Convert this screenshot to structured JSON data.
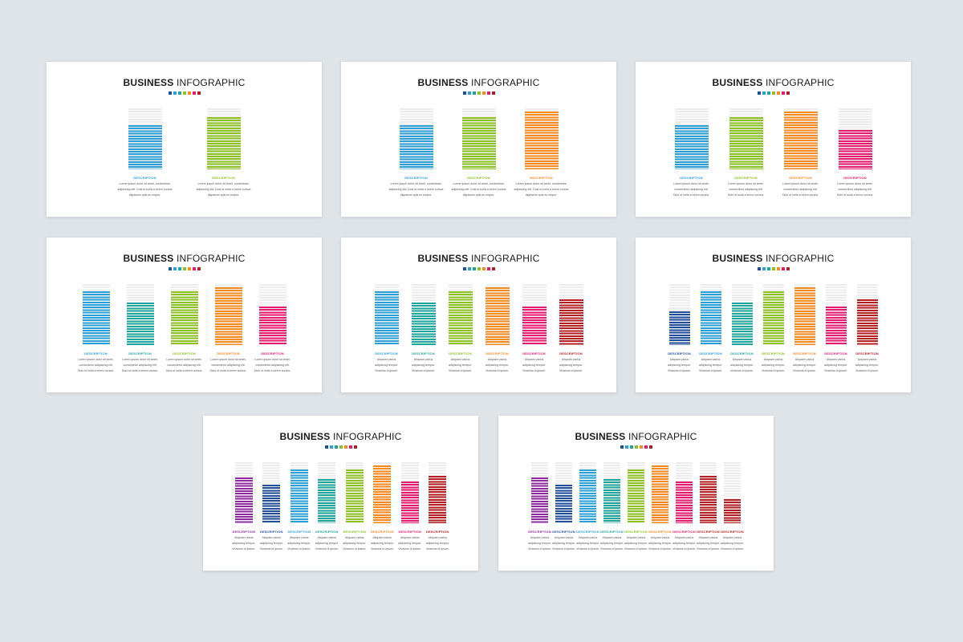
{
  "title": {
    "bold": "BUSINESS",
    "light": "INFOGRAPHIC"
  },
  "swatch_colors": [
    "#1f4e9a",
    "#2aa0d9",
    "#1da79c",
    "#8cc21f",
    "#f68a1f",
    "#e8186e",
    "#b61d20",
    "#8e2aa0"
  ],
  "description_label": "DESCRIPTION",
  "desc_lines_long": [
    "Lorem ipsum dolor sit amet, consectetur",
    "adipiscing elit. Duis ut nulla a lorem cursus",
    "dignissim quis eu neque."
  ],
  "desc_lines_mid": [
    "Lorem ipsum dolor sit amet,",
    "consectetur adipiscing elit.",
    "Duis ut nulla a lorem cursus."
  ],
  "desc_lines_short": [
    "Aliquam varius",
    "adipiscing tempor.",
    "Vivamus id ipsum."
  ],
  "slides": [
    {
      "bars": [
        {
          "color": "#2aa0d9",
          "level": 0.72
        },
        {
          "color": "#8cc21f",
          "level": 0.86
        }
      ]
    },
    {
      "bars": [
        {
          "color": "#2aa0d9",
          "level": 0.72
        },
        {
          "color": "#8cc21f",
          "level": 0.86
        },
        {
          "color": "#f68a1f",
          "level": 0.95
        }
      ]
    },
    {
      "bars": [
        {
          "color": "#2aa0d9",
          "level": 0.72
        },
        {
          "color": "#8cc21f",
          "level": 0.86
        },
        {
          "color": "#f68a1f",
          "level": 0.95
        },
        {
          "color": "#e8186e",
          "level": 0.65
        }
      ]
    },
    {
      "bars": [
        {
          "color": "#2aa0d9",
          "level": 0.88
        },
        {
          "color": "#1da79c",
          "level": 0.7
        },
        {
          "color": "#8cc21f",
          "level": 0.88
        },
        {
          "color": "#f68a1f",
          "level": 0.95
        },
        {
          "color": "#e8186e",
          "level": 0.63
        }
      ]
    },
    {
      "bars": [
        {
          "color": "#2aa0d9",
          "level": 0.88
        },
        {
          "color": "#1da79c",
          "level": 0.7
        },
        {
          "color": "#8cc21f",
          "level": 0.88
        },
        {
          "color": "#f68a1f",
          "level": 0.95
        },
        {
          "color": "#e8186e",
          "level": 0.63
        },
        {
          "color": "#b61d20",
          "level": 0.75
        }
      ]
    },
    {
      "bars": [
        {
          "color": "#1f4e9a",
          "level": 0.55
        },
        {
          "color": "#2aa0d9",
          "level": 0.88
        },
        {
          "color": "#1da79c",
          "level": 0.7
        },
        {
          "color": "#8cc21f",
          "level": 0.88
        },
        {
          "color": "#f68a1f",
          "level": 0.95
        },
        {
          "color": "#e8186e",
          "level": 0.63
        },
        {
          "color": "#b61d20",
          "level": 0.75
        }
      ]
    },
    {
      "bars": [
        {
          "color": "#8e2aa0",
          "level": 0.75
        },
        {
          "color": "#1f4e9a",
          "level": 0.63
        },
        {
          "color": "#2aa0d9",
          "level": 0.88
        },
        {
          "color": "#1da79c",
          "level": 0.73
        },
        {
          "color": "#8cc21f",
          "level": 0.88
        },
        {
          "color": "#f68a1f",
          "level": 0.95
        },
        {
          "color": "#e8186e",
          "level": 0.68
        },
        {
          "color": "#b61d20",
          "level": 0.78
        }
      ]
    },
    {
      "bars": [
        {
          "color": "#8e2aa0",
          "level": 0.75
        },
        {
          "color": "#1f4e9a",
          "level": 0.63
        },
        {
          "color": "#2aa0d9",
          "level": 0.88
        },
        {
          "color": "#1da79c",
          "level": 0.73
        },
        {
          "color": "#8cc21f",
          "level": 0.88
        },
        {
          "color": "#f68a1f",
          "level": 0.95
        },
        {
          "color": "#e8186e",
          "level": 0.68
        },
        {
          "color": "#b61d20",
          "level": 0.78
        },
        {
          "color": "#b61d20",
          "level": 0.4
        }
      ]
    }
  ]
}
